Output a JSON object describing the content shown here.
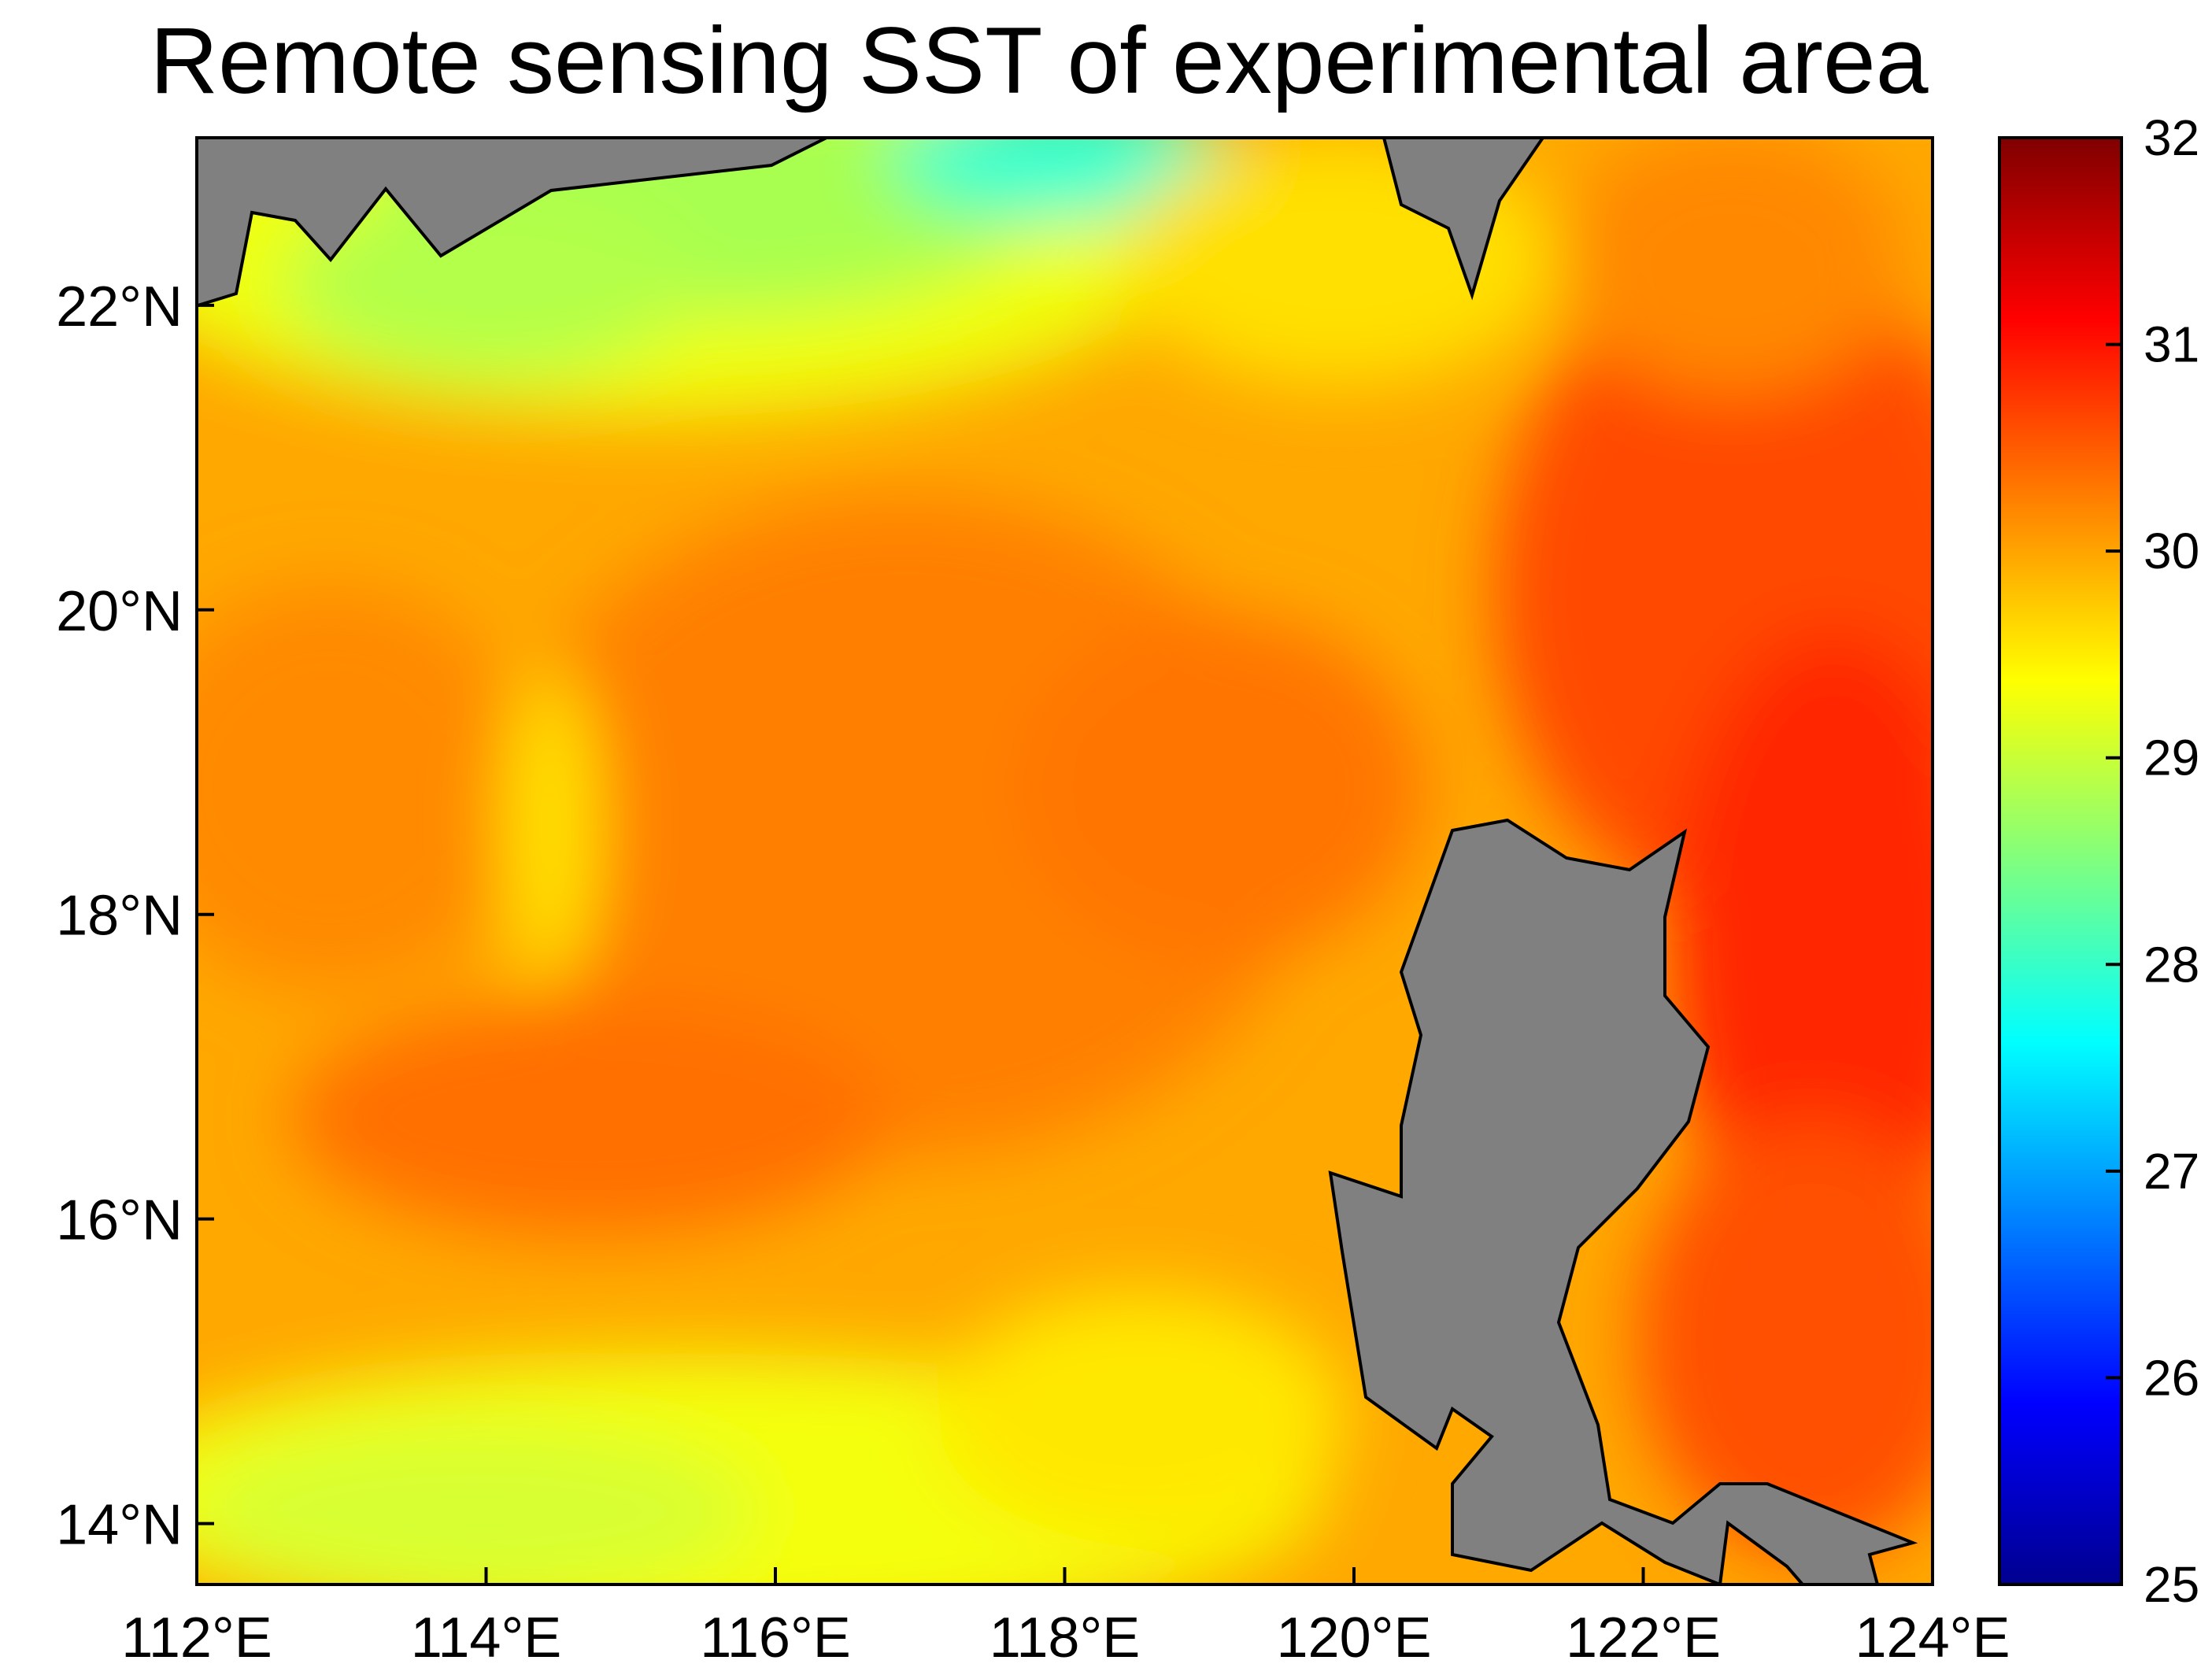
{
  "chart_data": {
    "type": "heatmap",
    "title": "Remote sensing SST of experimental area",
    "xlabel": "",
    "ylabel": "",
    "x_range": [
      112,
      124
    ],
    "y_range": [
      13.6,
      23.1
    ],
    "x_ticks": [
      112,
      114,
      116,
      118,
      120,
      122,
      124
    ],
    "x_tick_labels": [
      "112°E",
      "114°E",
      "116°E",
      "118°E",
      "120°E",
      "122°E",
      "124°E"
    ],
    "y_ticks": [
      14,
      16,
      18,
      20,
      22
    ],
    "y_tick_labels": [
      "14°N",
      "16°N",
      "18°N",
      "20°N",
      "22°N"
    ],
    "colorbar": {
      "min": 25,
      "max": 32,
      "ticks": [
        25,
        26,
        27,
        28,
        29,
        30,
        31,
        32
      ],
      "tick_labels": [
        "25",
        "26",
        "27",
        "28",
        "29",
        "30",
        "31",
        "32"
      ],
      "colormap": "jet"
    },
    "sst_approx_celsius": {
      "nw_coastal_min": 27.9,
      "nw_coastal": 28.4,
      "north_central": 29.1,
      "west_center": 29.8,
      "center": 30.1,
      "southwest": 29.2,
      "east_open_ocean": 30.6,
      "east_max": 31.0
    },
    "land_color": "#808080",
    "land_labels": []
  }
}
